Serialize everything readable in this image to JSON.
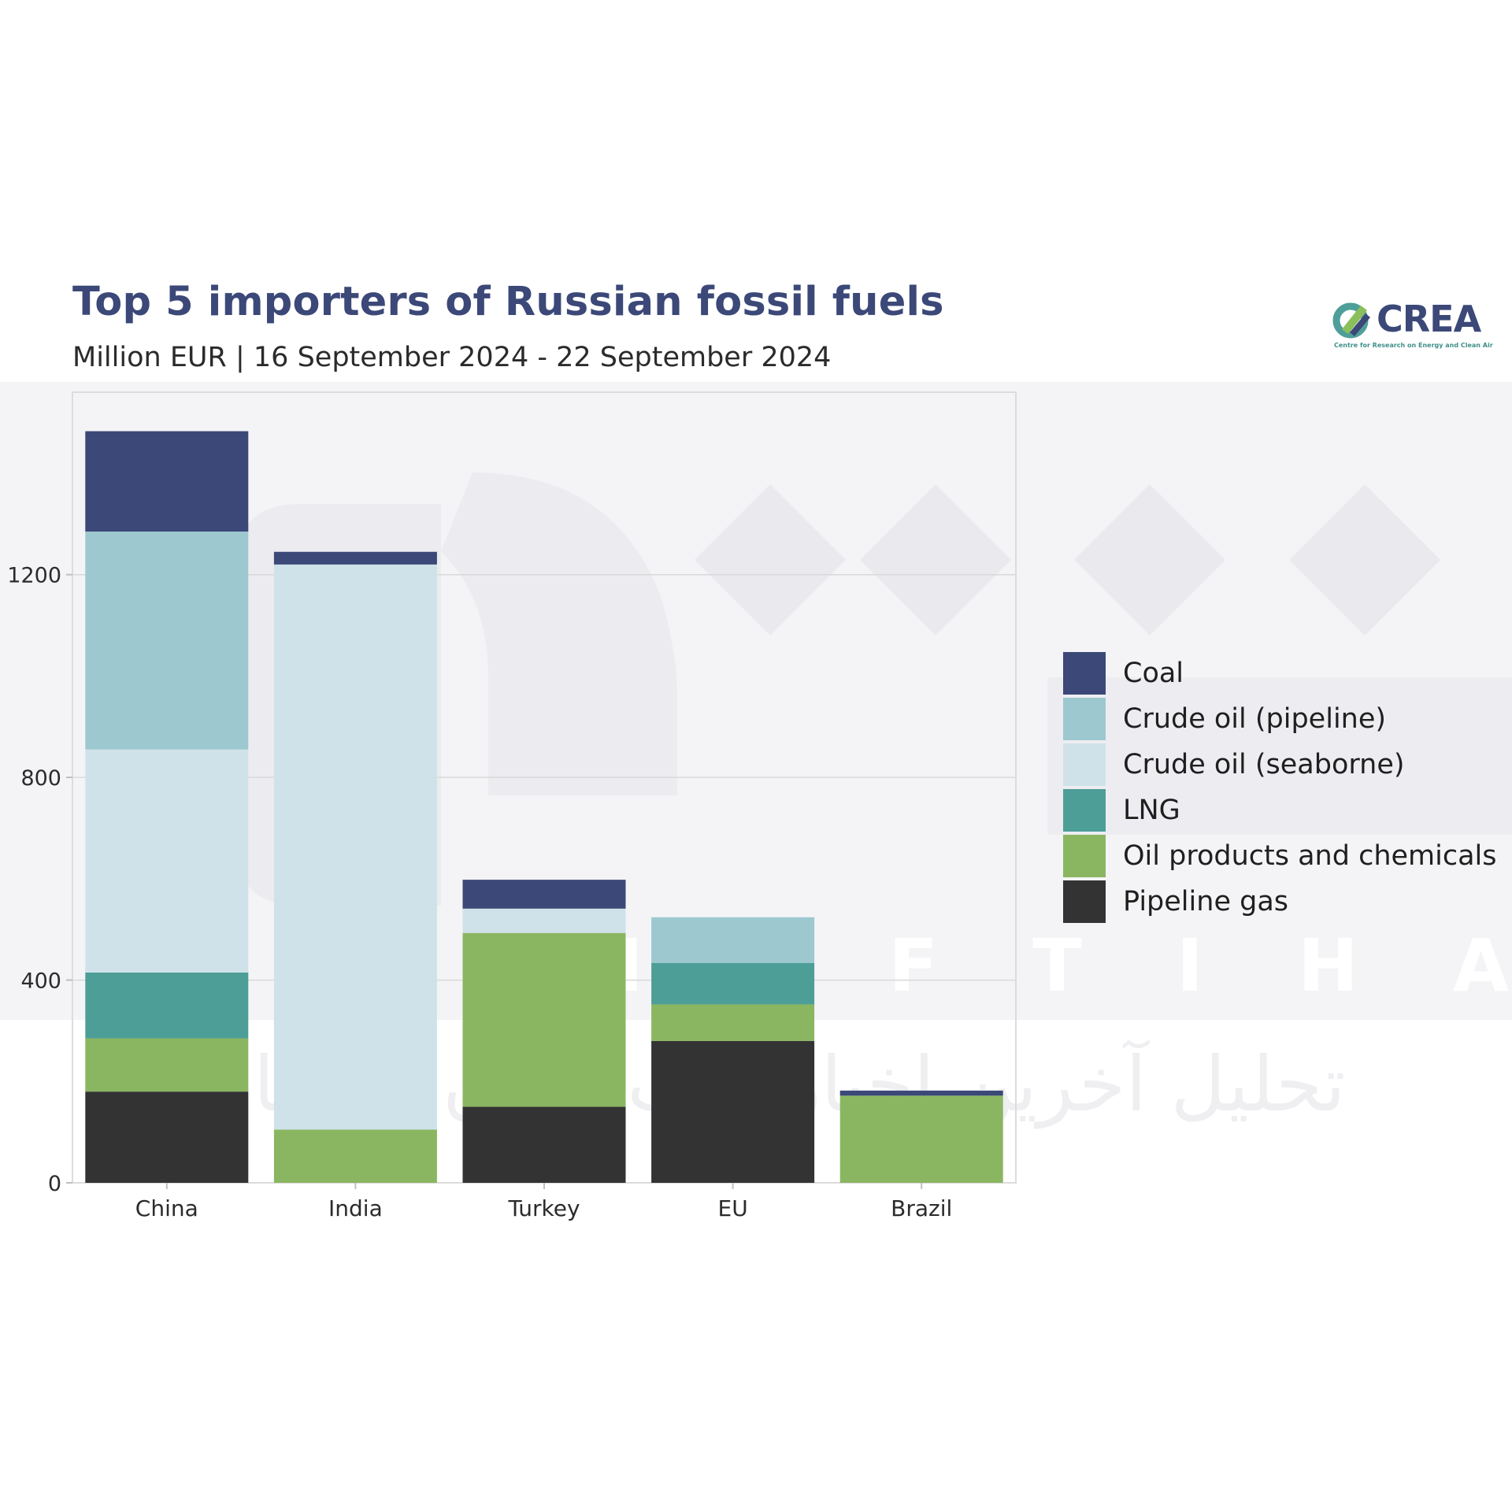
{
  "header": {
    "title": "Top 5 importers of Russian fossil fuels",
    "subtitle": "Million EUR | 16 September 2024 - 22 September 2024"
  },
  "logo": {
    "name": "CREA",
    "tagline": "Centre for Research on Energy and Clean Air",
    "colors": [
      "#3b4878",
      "#4e9f9a",
      "#8bbf5c"
    ]
  },
  "watermark": {
    "latin": "NAFTIHA",
    "arabic": "تحلیل آخرین اخبار نفت ایران و جهان"
  },
  "chart_data": {
    "type": "bar",
    "stacked": true,
    "categories": [
      "China",
      "India",
      "Turkey",
      "EU",
      "Brazil"
    ],
    "ylim": [
      0,
      1560
    ],
    "yticks": [
      0,
      400,
      800,
      1200
    ],
    "grid": true,
    "legend_position": "right",
    "series": [
      {
        "name": "Pipeline gas",
        "color": "#333333",
        "values": [
          180,
          0,
          150,
          280,
          0
        ]
      },
      {
        "name": "Oil products and chemicals",
        "color": "#8ab661",
        "values": [
          105,
          105,
          343,
          72,
          172
        ]
      },
      {
        "name": "LNG",
        "color": "#4e9e98",
        "values": [
          130,
          0,
          0,
          82,
          0
        ]
      },
      {
        "name": "Crude oil (seaborne)",
        "color": "#cfe2e9",
        "values": [
          440,
          1115,
          48,
          0,
          0
        ]
      },
      {
        "name": "Crude oil (pipeline)",
        "color": "#9ec8d0",
        "values": [
          430,
          0,
          0,
          90,
          0
        ]
      },
      {
        "name": "Coal",
        "color": "#3b4878",
        "values": [
          198,
          25,
          57,
          0,
          10
        ]
      }
    ]
  },
  "legend": {
    "items": [
      {
        "label": "Coal",
        "color": "#3b4878"
      },
      {
        "label": "Crude oil (pipeline)",
        "color": "#9ec8d0"
      },
      {
        "label": "Crude oil (seaborne)",
        "color": "#cfe2e9"
      },
      {
        "label": "LNG",
        "color": "#4e9e98"
      },
      {
        "label": "Oil products and chemicals",
        "color": "#8ab661"
      },
      {
        "label": "Pipeline gas",
        "color": "#333333"
      }
    ]
  }
}
